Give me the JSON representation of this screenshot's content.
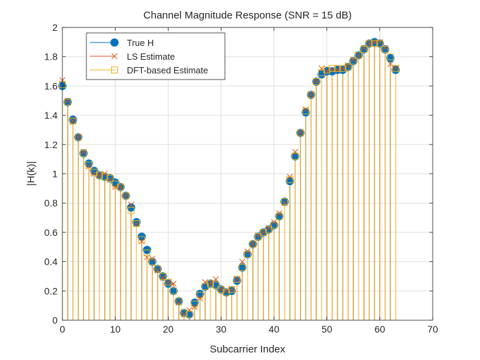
{
  "chart_data": {
    "type": "stem",
    "title": "Channel Magnitude Response (SNR = 15 dB)",
    "xlabel": "Subcarrier Index",
    "ylabel": "|H(k)|",
    "xlim": [
      0,
      70
    ],
    "ylim": [
      0,
      2
    ],
    "xticks": [
      0,
      10,
      20,
      30,
      40,
      50,
      60,
      70
    ],
    "yticks": [
      0,
      0.2,
      0.4,
      0.6,
      0.8,
      1,
      1.2,
      1.4,
      1.6,
      1.8,
      2
    ],
    "ytick_labels": [
      "0",
      "0.2",
      "0.4",
      "0.6",
      "0.8",
      "1",
      "1.2",
      "1.4",
      "1.6",
      "1.8",
      "2"
    ],
    "grid": true,
    "legend_position": "top-left",
    "x": [
      0,
      1,
      2,
      3,
      4,
      5,
      6,
      7,
      8,
      9,
      10,
      11,
      12,
      13,
      14,
      15,
      16,
      17,
      18,
      19,
      20,
      21,
      22,
      23,
      24,
      25,
      26,
      27,
      28,
      29,
      30,
      31,
      32,
      33,
      34,
      35,
      36,
      37,
      38,
      39,
      40,
      41,
      42,
      43,
      44,
      45,
      46,
      47,
      48,
      49,
      50,
      51,
      52,
      53,
      54,
      55,
      56,
      57,
      58,
      59,
      60,
      61,
      62,
      63
    ],
    "series": [
      {
        "name": "True H",
        "color": "#0072BD",
        "marker": "circle",
        "values": [
          1.6,
          1.49,
          1.37,
          1.25,
          1.14,
          1.07,
          1.02,
          0.99,
          0.98,
          0.97,
          0.94,
          0.91,
          0.85,
          0.77,
          0.67,
          0.57,
          0.48,
          0.4,
          0.35,
          0.3,
          0.25,
          0.2,
          0.13,
          0.05,
          0.04,
          0.12,
          0.18,
          0.23,
          0.25,
          0.24,
          0.21,
          0.19,
          0.2,
          0.27,
          0.36,
          0.45,
          0.52,
          0.57,
          0.6,
          0.62,
          0.65,
          0.71,
          0.81,
          0.95,
          1.12,
          1.28,
          1.42,
          1.54,
          1.63,
          1.68,
          1.7,
          1.7,
          1.71,
          1.71,
          1.73,
          1.77,
          1.81,
          1.85,
          1.89,
          1.9,
          1.89,
          1.85,
          1.79,
          1.71
        ]
      },
      {
        "name": "LS Estimate",
        "color": "#D95319",
        "marker": "x",
        "values": [
          1.64,
          1.5,
          1.36,
          1.25,
          1.15,
          1.05,
          1.0,
          0.99,
          1.0,
          0.96,
          0.91,
          0.91,
          0.85,
          0.79,
          0.66,
          0.54,
          0.43,
          0.42,
          0.34,
          0.29,
          0.26,
          0.25,
          0.12,
          0.04,
          0.07,
          0.09,
          0.15,
          0.26,
          0.25,
          0.28,
          0.21,
          0.2,
          0.21,
          0.28,
          0.4,
          0.47,
          0.52,
          0.58,
          0.6,
          0.63,
          0.67,
          0.73,
          0.8,
          0.98,
          1.15,
          1.28,
          1.44,
          1.54,
          1.63,
          1.72,
          1.7,
          1.71,
          1.71,
          1.72,
          1.74,
          1.78,
          1.81,
          1.86,
          1.89,
          1.9,
          1.9,
          1.86,
          1.75,
          1.72
        ]
      },
      {
        "name": "DFT-based Estimate",
        "color": "#EDB120",
        "marker": "square",
        "values": [
          1.61,
          1.49,
          1.36,
          1.25,
          1.14,
          1.06,
          1.01,
          0.99,
          0.98,
          0.97,
          0.93,
          0.91,
          0.85,
          0.75,
          0.66,
          0.55,
          0.46,
          0.4,
          0.35,
          0.3,
          0.26,
          0.2,
          0.13,
          0.05,
          0.04,
          0.11,
          0.17,
          0.23,
          0.25,
          0.24,
          0.21,
          0.19,
          0.21,
          0.28,
          0.36,
          0.45,
          0.52,
          0.57,
          0.6,
          0.62,
          0.65,
          0.71,
          0.81,
          0.96,
          1.12,
          1.28,
          1.43,
          1.54,
          1.63,
          1.69,
          1.71,
          1.72,
          1.72,
          1.72,
          1.73,
          1.77,
          1.81,
          1.85,
          1.89,
          1.89,
          1.89,
          1.85,
          1.8,
          1.72
        ]
      }
    ]
  }
}
